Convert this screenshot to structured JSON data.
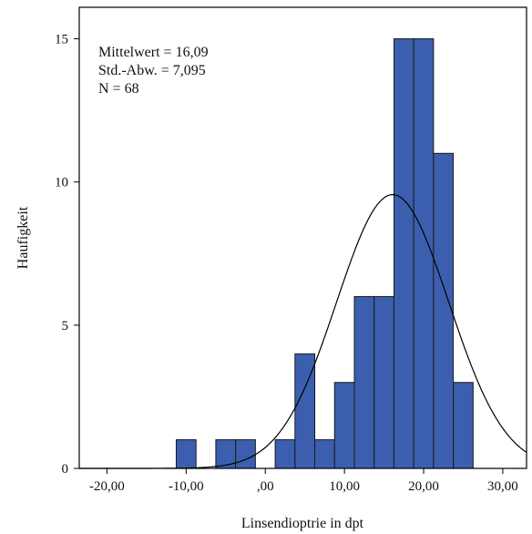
{
  "chart_data": {
    "type": "bar",
    "subtype": "histogram",
    "title": "",
    "xlabel": "Linsendioptrie in dpt",
    "ylabel": "Haufigkeit",
    "xlim": [
      -23.5,
      33
    ],
    "ylim": [
      0,
      16.1
    ],
    "x_tick_values": [
      -20,
      -10,
      0,
      10,
      20,
      30
    ],
    "x_tick_labels": [
      "-20,00",
      "-10,00",
      ",00",
      "10,00",
      "20,00",
      "30,00"
    ],
    "y_tick_values": [
      0,
      5,
      10,
      15
    ],
    "y_tick_labels": [
      "0",
      "5",
      "10",
      "15"
    ],
    "bin_width": 2.5,
    "bins": [
      {
        "start": -11.25,
        "end": -8.75,
        "count": 1
      },
      {
        "start": -6.25,
        "end": -3.75,
        "count": 1
      },
      {
        "start": -3.75,
        "end": -1.25,
        "count": 1
      },
      {
        "start": 1.25,
        "end": 3.75,
        "count": 1
      },
      {
        "start": 3.75,
        "end": 6.25,
        "count": 4
      },
      {
        "start": 6.25,
        "end": 8.75,
        "count": 1
      },
      {
        "start": 8.75,
        "end": 11.25,
        "count": 3
      },
      {
        "start": 11.25,
        "end": 13.75,
        "count": 6
      },
      {
        "start": 13.75,
        "end": 16.25,
        "count": 6
      },
      {
        "start": 16.25,
        "end": 18.75,
        "count": 15
      },
      {
        "start": 18.75,
        "end": 21.25,
        "count": 15
      },
      {
        "start": 21.25,
        "end": 23.75,
        "count": 11
      },
      {
        "start": 23.75,
        "end": 26.25,
        "count": 3
      }
    ],
    "normal_curve": {
      "mean": 16.09,
      "sd": 7.095,
      "n": 68
    },
    "bar_color": "#3b5fae",
    "bar_edge_color": "#1a1a1a",
    "grid": false,
    "stats": {
      "mean_label": "Mittelwert = 16,09",
      "sd_label": "Std.-Abw. = 7,095",
      "n_label": "N = 68"
    }
  }
}
